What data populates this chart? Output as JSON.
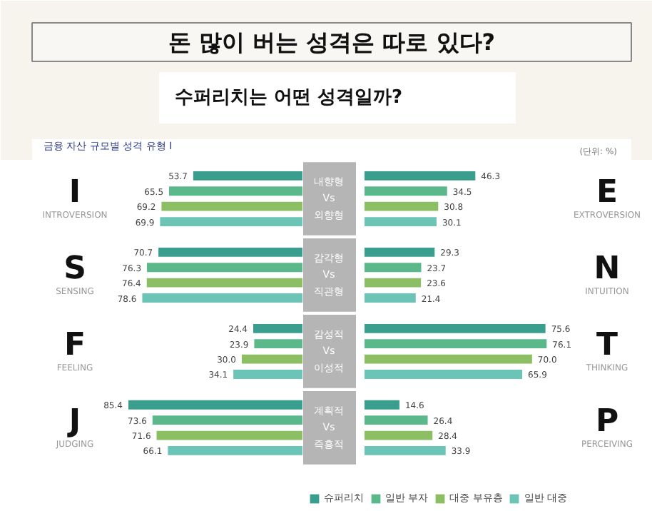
{
  "chart_data": [
    {
      "type": "bar",
      "orientation": "horizontal",
      "title": "돈 많이 버는 성격은 따로 있다?",
      "subtitle": "수퍼리치는 어떤 성격일까?",
      "categories": [
        "내향형 Vs 외향형",
        "감각형 Vs 직관형",
        "감성적 Vs 이성적",
        "계획적 Vs 즉흥적"
      ],
      "series": [
        {
          "color": "#3a9e8e",
          "values": [
            53.7,
            70.7,
            24.4,
            85.4
          ],
          "value_labels": [
            "53.7",
            "70.7",
            "24.4",
            "85.4"
          ]
        },
        {
          "color": "#5bb88a",
          "values": [
            65.5,
            76.3,
            23.9,
            73.6
          ],
          "value_labels": [
            "65.5",
            "76.3",
            "23.9",
            "73.6"
          ]
        },
        {
          "color": "#8cbf64",
          "values": [
            69.2,
            76.4,
            30.0,
            71.6
          ],
          "value_labels": [
            "69.2",
            "76.4",
            "30.0",
            "71.6"
          ]
        },
        {
          "color": "#6cc4b6",
          "values": [
            69.9,
            78.6,
            34.1,
            66.1
          ],
          "value_labels": [
            "69.9",
            "78.6",
            "34.1",
            "66.1"
          ]
        }
      ],
      "tick_labels": false,
      "annotations": [
        "금융 자산 규모별 성격 유형 I",
        "I",
        "INTROVERSION",
        "S",
        "SENSING",
        "F",
        "FEELING",
        "J",
        "JUDGING"
      ]
    },
    {
      "type": "bar",
      "orientation": "horizontal",
      "categories": [
        null,
        null,
        null,
        null
      ],
      "series": [
        {
          "name": "슈퍼리치",
          "color": "#3a9e8e",
          "values": [
            46.3,
            29.3,
            75.6,
            14.6
          ],
          "value_labels": [
            "46.3",
            "29.3",
            "75.6",
            "14.6"
          ]
        },
        {
          "name": "일반 부자",
          "color": "#5bb88a",
          "values": [
            34.5,
            23.7,
            76.1,
            26.4
          ],
          "value_labels": [
            "34.5",
            "23.7",
            "76.1",
            "26.4"
          ]
        },
        {
          "name": "대중 부유층",
          "color": "#8cbf64",
          "values": [
            30.8,
            23.6,
            70.0,
            28.4
          ],
          "value_labels": [
            "30.8",
            "23.6",
            "70.0",
            "28.4"
          ]
        },
        {
          "name": "일반 대중",
          "color": "#6cc4b6",
          "values": [
            30.1,
            21.4,
            65.9,
            33.9
          ],
          "value_labels": [
            "30.1",
            "21.4",
            "65.9",
            "33.9"
          ]
        }
      ],
      "tick_labels": false,
      "legend": "bottom",
      "annotations": [
        "(단위: %)",
        "E",
        "EXTROVERSION",
        "N",
        "INTUITION",
        "T",
        "THINKING",
        "P",
        "PERCEIVING"
      ]
    }
  ]
}
